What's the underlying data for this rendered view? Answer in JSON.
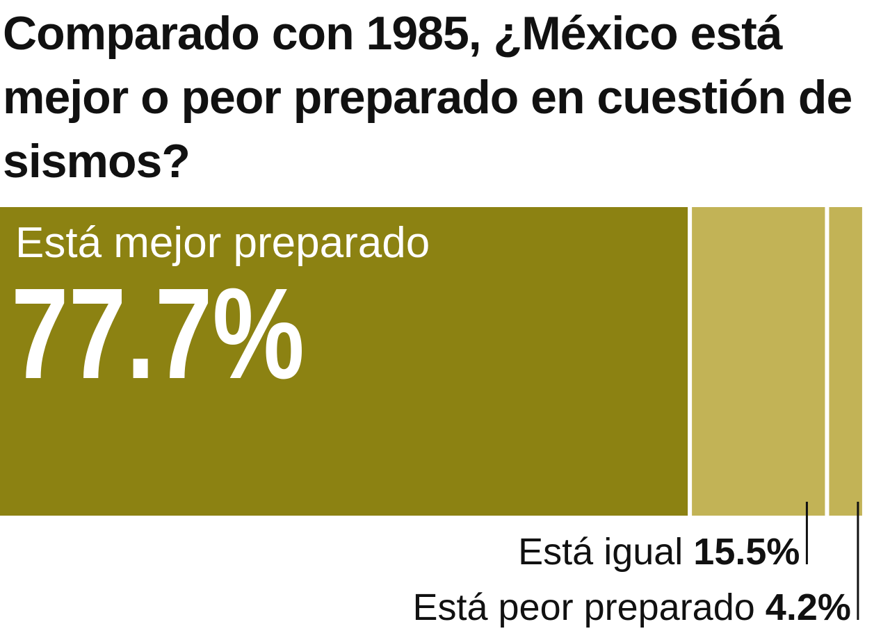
{
  "chart_data": {
    "type": "bar",
    "title": "Comparado con 1985, ¿México está mejor o peor preparado en cuestión de sismos?",
    "stacked": true,
    "orientation": "horizontal",
    "xlim": [
      0,
      100
    ],
    "categories": [
      "Está mejor preparado",
      "Está igual",
      "Está peor preparado"
    ],
    "values": [
      77.7,
      15.5,
      4.2
    ],
    "value_labels": [
      "77.7%",
      "15.5%",
      "4.2%"
    ],
    "colors": [
      "#8C8212",
      "#C2B356",
      "#C2B356"
    ]
  }
}
